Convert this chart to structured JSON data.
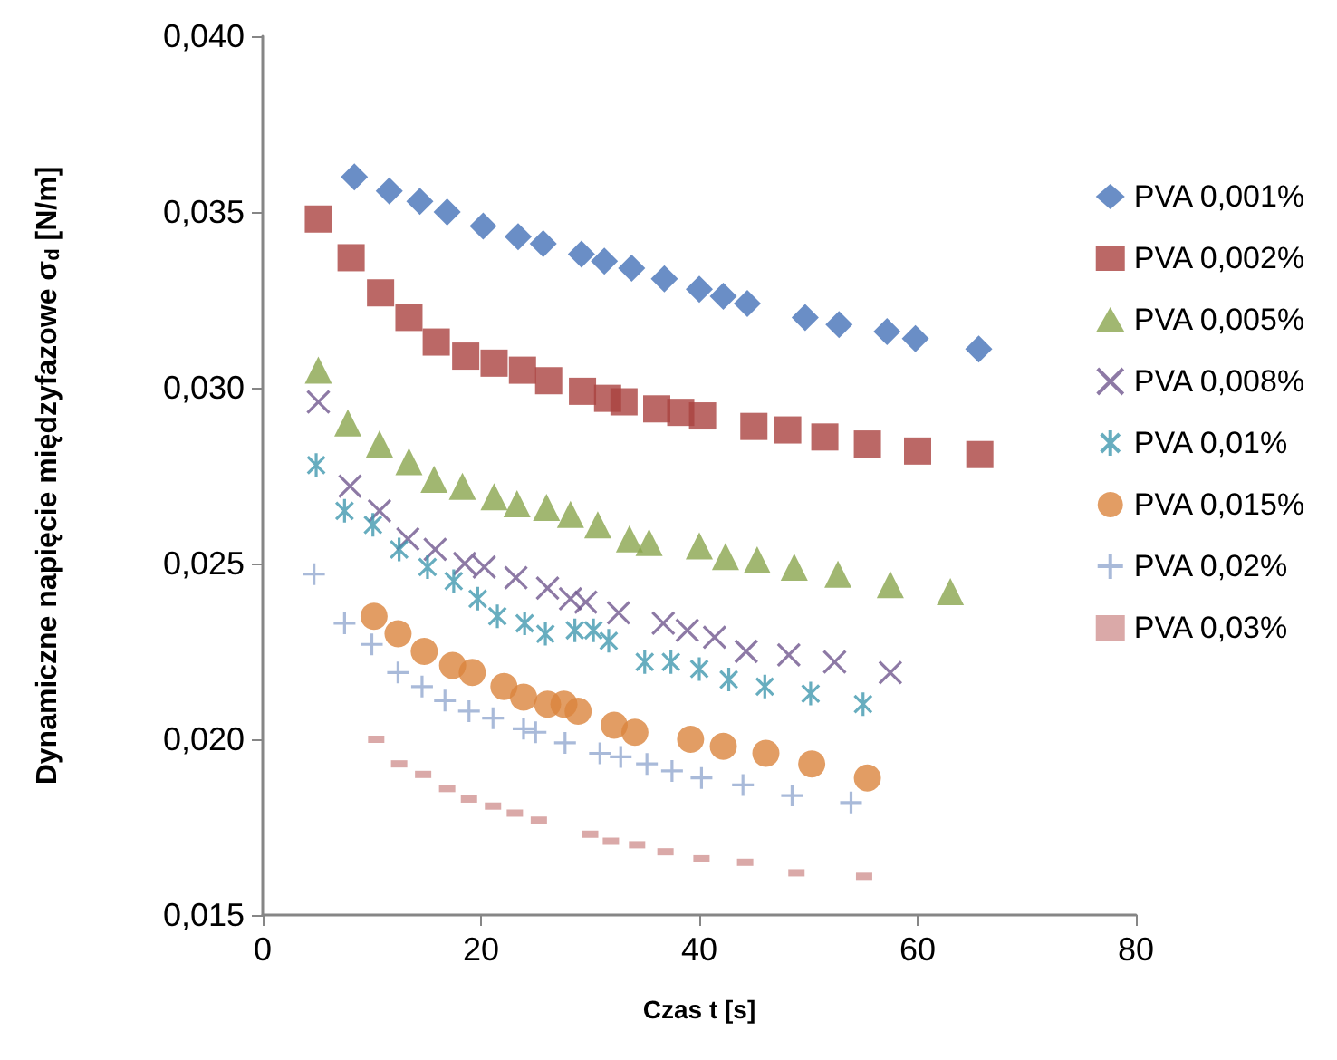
{
  "chart_data": {
    "type": "scatter",
    "xlabel": "Czas t [s]",
    "ylabel": "Dynamiczne napięcie międzyfazowe σ$_{d}$ [N/m]",
    "xlim": [
      0,
      80
    ],
    "xticks": [
      0,
      20,
      40,
      60,
      80
    ],
    "ylim": [
      0.015,
      0.04
    ],
    "yticks": [
      {
        "value": 0.015,
        "label": "0,015"
      },
      {
        "value": 0.02,
        "label": "0,020"
      },
      {
        "value": 0.025,
        "label": "0,025"
      },
      {
        "value": 0.03,
        "label": "0,030"
      },
      {
        "value": 0.035,
        "label": "0,035"
      },
      {
        "value": 0.04,
        "label": "0,040"
      }
    ],
    "grid": false,
    "legend": "right",
    "series": [
      {
        "name": "PVA 0,001%",
        "color": "#4572b8",
        "marker": "diamond",
        "x": [
          8.4,
          11.6,
          14.4,
          16.9,
          20.2,
          23.4,
          25.7,
          29.2,
          31.3,
          33.8,
          36.8,
          40.0,
          42.2,
          44.4,
          49.7,
          52.8,
          57.2,
          59.8,
          65.6
        ],
        "values": [
          0.036,
          0.0356,
          0.0353,
          0.035,
          0.0346,
          0.0343,
          0.0341,
          0.0338,
          0.0336,
          0.0334,
          0.0331,
          0.0328,
          0.0326,
          0.0324,
          0.032,
          0.0318,
          0.0316,
          0.0314,
          0.0311
        ]
      },
      {
        "name": "PVA 0,002%",
        "color": "#aa4240",
        "marker": "square",
        "x": [
          5.1,
          8.1,
          10.8,
          13.4,
          15.9,
          18.6,
          21.2,
          23.8,
          26.2,
          29.3,
          31.6,
          33.1,
          36.1,
          38.3,
          40.3,
          45.0,
          48.1,
          51.5,
          55.4,
          60.0,
          65.7
        ],
        "values": [
          0.0348,
          0.0337,
          0.0327,
          0.032,
          0.0313,
          0.0309,
          0.0307,
          0.0305,
          0.0302,
          0.0299,
          0.0297,
          0.0296,
          0.0294,
          0.0293,
          0.0292,
          0.0289,
          0.0288,
          0.0286,
          0.0284,
          0.0282,
          0.0281
        ]
      },
      {
        "name": "PVA 0,005%",
        "color": "#89a54e",
        "marker": "triangle",
        "x": [
          5.1,
          7.8,
          10.7,
          13.4,
          15.7,
          18.3,
          21.2,
          23.3,
          26.0,
          28.2,
          30.7,
          33.6,
          35.4,
          40.0,
          42.4,
          45.3,
          48.7,
          52.7,
          57.5,
          63.0
        ],
        "values": [
          0.0305,
          0.029,
          0.0284,
          0.0279,
          0.0274,
          0.0272,
          0.0269,
          0.0267,
          0.0266,
          0.0264,
          0.0261,
          0.0257,
          0.0256,
          0.0255,
          0.0252,
          0.0251,
          0.0249,
          0.0247,
          0.0244,
          0.0242
        ]
      },
      {
        "name": "PVA 0,008%",
        "color": "#71588f",
        "marker": "x",
        "x": [
          5.1,
          8.0,
          10.7,
          13.3,
          15.8,
          18.5,
          20.3,
          23.2,
          26.1,
          28.2,
          29.6,
          32.6,
          36.7,
          38.9,
          41.4,
          44.3,
          48.2,
          52.4,
          57.5
        ],
        "values": [
          0.0296,
          0.0272,
          0.0265,
          0.0257,
          0.0254,
          0.025,
          0.0249,
          0.0246,
          0.0243,
          0.024,
          0.0239,
          0.0236,
          0.0233,
          0.0231,
          0.0229,
          0.0225,
          0.0224,
          0.0222,
          0.0219
        ]
      },
      {
        "name": "PVA 0,01%",
        "color": "#4198af",
        "marker": "cross",
        "x": [
          4.9,
          7.5,
          10.1,
          12.5,
          15.1,
          17.5,
          19.7,
          21.5,
          24.0,
          25.9,
          28.6,
          30.3,
          31.7,
          35.0,
          37.4,
          40.0,
          42.7,
          46.0,
          50.2,
          55.0
        ],
        "values": [
          0.0278,
          0.0265,
          0.0261,
          0.0254,
          0.0249,
          0.0245,
          0.024,
          0.0235,
          0.0233,
          0.023,
          0.0231,
          0.0231,
          0.0228,
          0.0222,
          0.0222,
          0.022,
          0.0217,
          0.0215,
          0.0213,
          0.021
        ]
      },
      {
        "name": "PVA 0,015%",
        "color": "#db843d",
        "marker": "circle",
        "x": [
          10.2,
          12.4,
          14.8,
          17.4,
          19.2,
          22.1,
          23.9,
          26.1,
          27.6,
          28.9,
          32.2,
          34.1,
          39.2,
          42.2,
          46.1,
          50.3,
          55.4
        ],
        "values": [
          0.0235,
          0.023,
          0.0225,
          0.0221,
          0.0219,
          0.0215,
          0.0212,
          0.021,
          0.021,
          0.0208,
          0.0204,
          0.0202,
          0.02,
          0.0198,
          0.0196,
          0.0193,
          0.0189
        ]
      },
      {
        "name": "PVA 0,02%",
        "color": "#93a9cf",
        "marker": "plus",
        "x": [
          4.7,
          7.5,
          10.0,
          12.4,
          14.6,
          16.7,
          18.9,
          21.1,
          23.9,
          25.0,
          27.7,
          30.9,
          32.8,
          35.2,
          37.5,
          40.2,
          44.0,
          48.5,
          53.9
        ],
        "values": [
          0.0247,
          0.0233,
          0.0227,
          0.0219,
          0.0215,
          0.0211,
          0.0208,
          0.0206,
          0.0203,
          0.0202,
          0.0199,
          0.0196,
          0.0195,
          0.0193,
          0.0191,
          0.0189,
          0.0187,
          0.0184,
          0.0182
        ]
      },
      {
        "name": "PVA 0,03%",
        "color": "#d19392",
        "x": [
          10.4,
          12.5,
          14.7,
          16.9,
          18.9,
          21.1,
          23.1,
          25.3,
          30.0,
          31.9,
          34.3,
          36.9,
          40.2,
          44.2,
          48.9,
          55.1
        ],
        "values": [
          0.02,
          0.0193,
          0.019,
          0.0186,
          0.0183,
          0.0181,
          0.0179,
          0.0177,
          0.0173,
          0.0171,
          0.017,
          0.0168,
          0.0166,
          0.0165,
          0.0162,
          0.0161
        ]
      }
    ]
  }
}
